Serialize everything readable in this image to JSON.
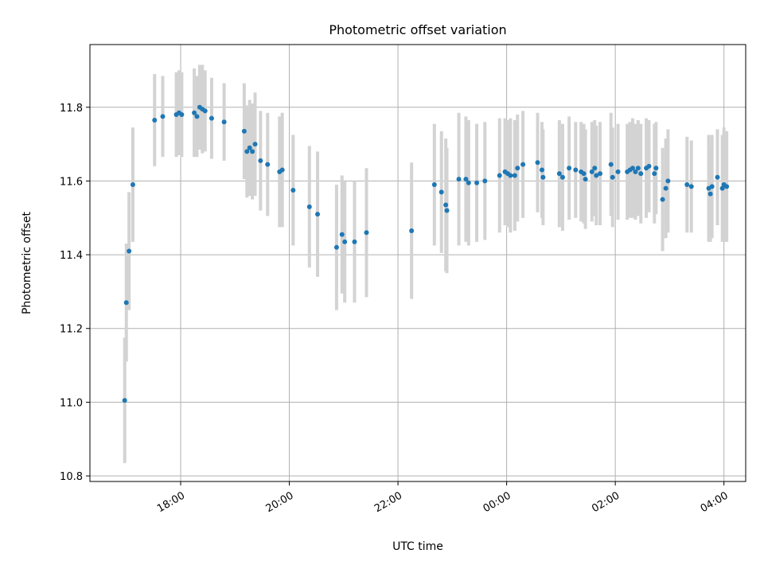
{
  "chart_data": {
    "type": "scatter",
    "title": "Photometric offset variation",
    "xlabel": "UTC time",
    "ylabel": "Photometric offset",
    "x_unit": "hours",
    "x_range": [
      16.33,
      28.4
    ],
    "ylim": [
      10.785,
      11.97
    ],
    "x_ticks": [
      {
        "value": 18,
        "label": "18:00"
      },
      {
        "value": 20,
        "label": "20:00"
      },
      {
        "value": 22,
        "label": "22:00"
      },
      {
        "value": 24,
        "label": "00:00"
      },
      {
        "value": 26,
        "label": "02:00"
      },
      {
        "value": 28,
        "label": "04:00"
      }
    ],
    "y_ticks": [
      {
        "value": 10.8,
        "label": "10.8"
      },
      {
        "value": 11.0,
        "label": "11.0"
      },
      {
        "value": 11.2,
        "label": "11.2"
      },
      {
        "value": 11.4,
        "label": "11.4"
      },
      {
        "value": 11.6,
        "label": "11.6"
      },
      {
        "value": 11.8,
        "label": "11.8"
      }
    ],
    "grid": true,
    "marker_color": "#1f77b4",
    "errorbar_color": "#d3d3d3",
    "points": [
      [
        16.97,
        11.005,
        0.17
      ],
      [
        17.0,
        11.27,
        0.16
      ],
      [
        17.05,
        11.41,
        0.16
      ],
      [
        17.12,
        11.59,
        0.155
      ],
      [
        17.52,
        11.765,
        0.125
      ],
      [
        17.67,
        11.775,
        0.11
      ],
      [
        17.92,
        11.78,
        0.115
      ],
      [
        17.97,
        11.785,
        0.115
      ],
      [
        18.02,
        11.78,
        0.115
      ],
      [
        18.25,
        11.785,
        0.12
      ],
      [
        18.3,
        11.775,
        0.11
      ],
      [
        18.35,
        11.8,
        0.115
      ],
      [
        18.4,
        11.795,
        0.12
      ],
      [
        18.45,
        11.79,
        0.11
      ],
      [
        18.57,
        11.77,
        0.11
      ],
      [
        18.8,
        11.76,
        0.105
      ],
      [
        19.17,
        11.735,
        0.13
      ],
      [
        19.22,
        11.68,
        0.125
      ],
      [
        19.27,
        11.69,
        0.13
      ],
      [
        19.32,
        11.68,
        0.13
      ],
      [
        19.37,
        11.7,
        0.14
      ],
      [
        19.47,
        11.655,
        0.135
      ],
      [
        19.6,
        11.645,
        0.14
      ],
      [
        19.82,
        11.625,
        0.15
      ],
      [
        19.87,
        11.63,
        0.155
      ],
      [
        20.07,
        11.575,
        0.15
      ],
      [
        20.37,
        11.53,
        0.165
      ],
      [
        20.52,
        11.51,
        0.17
      ],
      [
        20.87,
        11.42,
        0.17
      ],
      [
        20.97,
        11.455,
        0.16
      ],
      [
        21.02,
        11.435,
        0.165
      ],
      [
        21.2,
        11.435,
        0.165
      ],
      [
        21.42,
        11.46,
        0.175
      ],
      [
        22.25,
        11.465,
        0.185
      ],
      [
        22.67,
        11.59,
        0.165
      ],
      [
        22.8,
        11.57,
        0.165
      ],
      [
        22.88,
        11.535,
        0.18
      ],
      [
        22.9,
        11.52,
        0.17
      ],
      [
        23.12,
        11.605,
        0.18
      ],
      [
        23.25,
        11.605,
        0.17
      ],
      [
        23.3,
        11.595,
        0.17
      ],
      [
        23.45,
        11.595,
        0.16
      ],
      [
        23.6,
        11.6,
        0.16
      ],
      [
        23.87,
        11.615,
        0.155
      ],
      [
        23.97,
        11.625,
        0.145
      ],
      [
        24.02,
        11.62,
        0.145
      ],
      [
        24.07,
        11.615,
        0.155
      ],
      [
        24.15,
        11.615,
        0.15
      ],
      [
        24.2,
        11.635,
        0.145
      ],
      [
        24.3,
        11.645,
        0.145
      ],
      [
        24.57,
        11.65,
        0.135
      ],
      [
        24.65,
        11.63,
        0.13
      ],
      [
        24.67,
        11.61,
        0.13
      ],
      [
        24.97,
        11.62,
        0.145
      ],
      [
        25.03,
        11.61,
        0.145
      ],
      [
        25.15,
        11.635,
        0.14
      ],
      [
        25.27,
        11.63,
        0.13
      ],
      [
        25.37,
        11.625,
        0.135
      ],
      [
        25.42,
        11.62,
        0.135
      ],
      [
        25.45,
        11.605,
        0.135
      ],
      [
        25.57,
        11.625,
        0.135
      ],
      [
        25.62,
        11.635,
        0.13
      ],
      [
        25.65,
        11.615,
        0.135
      ],
      [
        25.72,
        11.62,
        0.14
      ],
      [
        25.92,
        11.645,
        0.14
      ],
      [
        25.95,
        11.61,
        0.135
      ],
      [
        26.05,
        11.625,
        0.13
      ],
      [
        26.22,
        11.625,
        0.13
      ],
      [
        26.27,
        11.63,
        0.13
      ],
      [
        26.32,
        11.635,
        0.135
      ],
      [
        26.37,
        11.625,
        0.13
      ],
      [
        26.42,
        11.635,
        0.13
      ],
      [
        26.47,
        11.62,
        0.135
      ],
      [
        26.57,
        11.635,
        0.135
      ],
      [
        26.62,
        11.64,
        0.125
      ],
      [
        26.72,
        11.62,
        0.135
      ],
      [
        26.75,
        11.635,
        0.125
      ],
      [
        26.87,
        11.55,
        0.14
      ],
      [
        26.93,
        11.58,
        0.135
      ],
      [
        26.97,
        11.6,
        0.14
      ],
      [
        27.32,
        11.59,
        0.13
      ],
      [
        27.4,
        11.585,
        0.125
      ],
      [
        27.72,
        11.58,
        0.145
      ],
      [
        27.75,
        11.565,
        0.13
      ],
      [
        27.78,
        11.585,
        0.14
      ],
      [
        27.88,
        11.61,
        0.13
      ],
      [
        27.97,
        11.58,
        0.145
      ],
      [
        28.0,
        11.59,
        0.155
      ],
      [
        28.05,
        11.585,
        0.15
      ]
    ]
  }
}
